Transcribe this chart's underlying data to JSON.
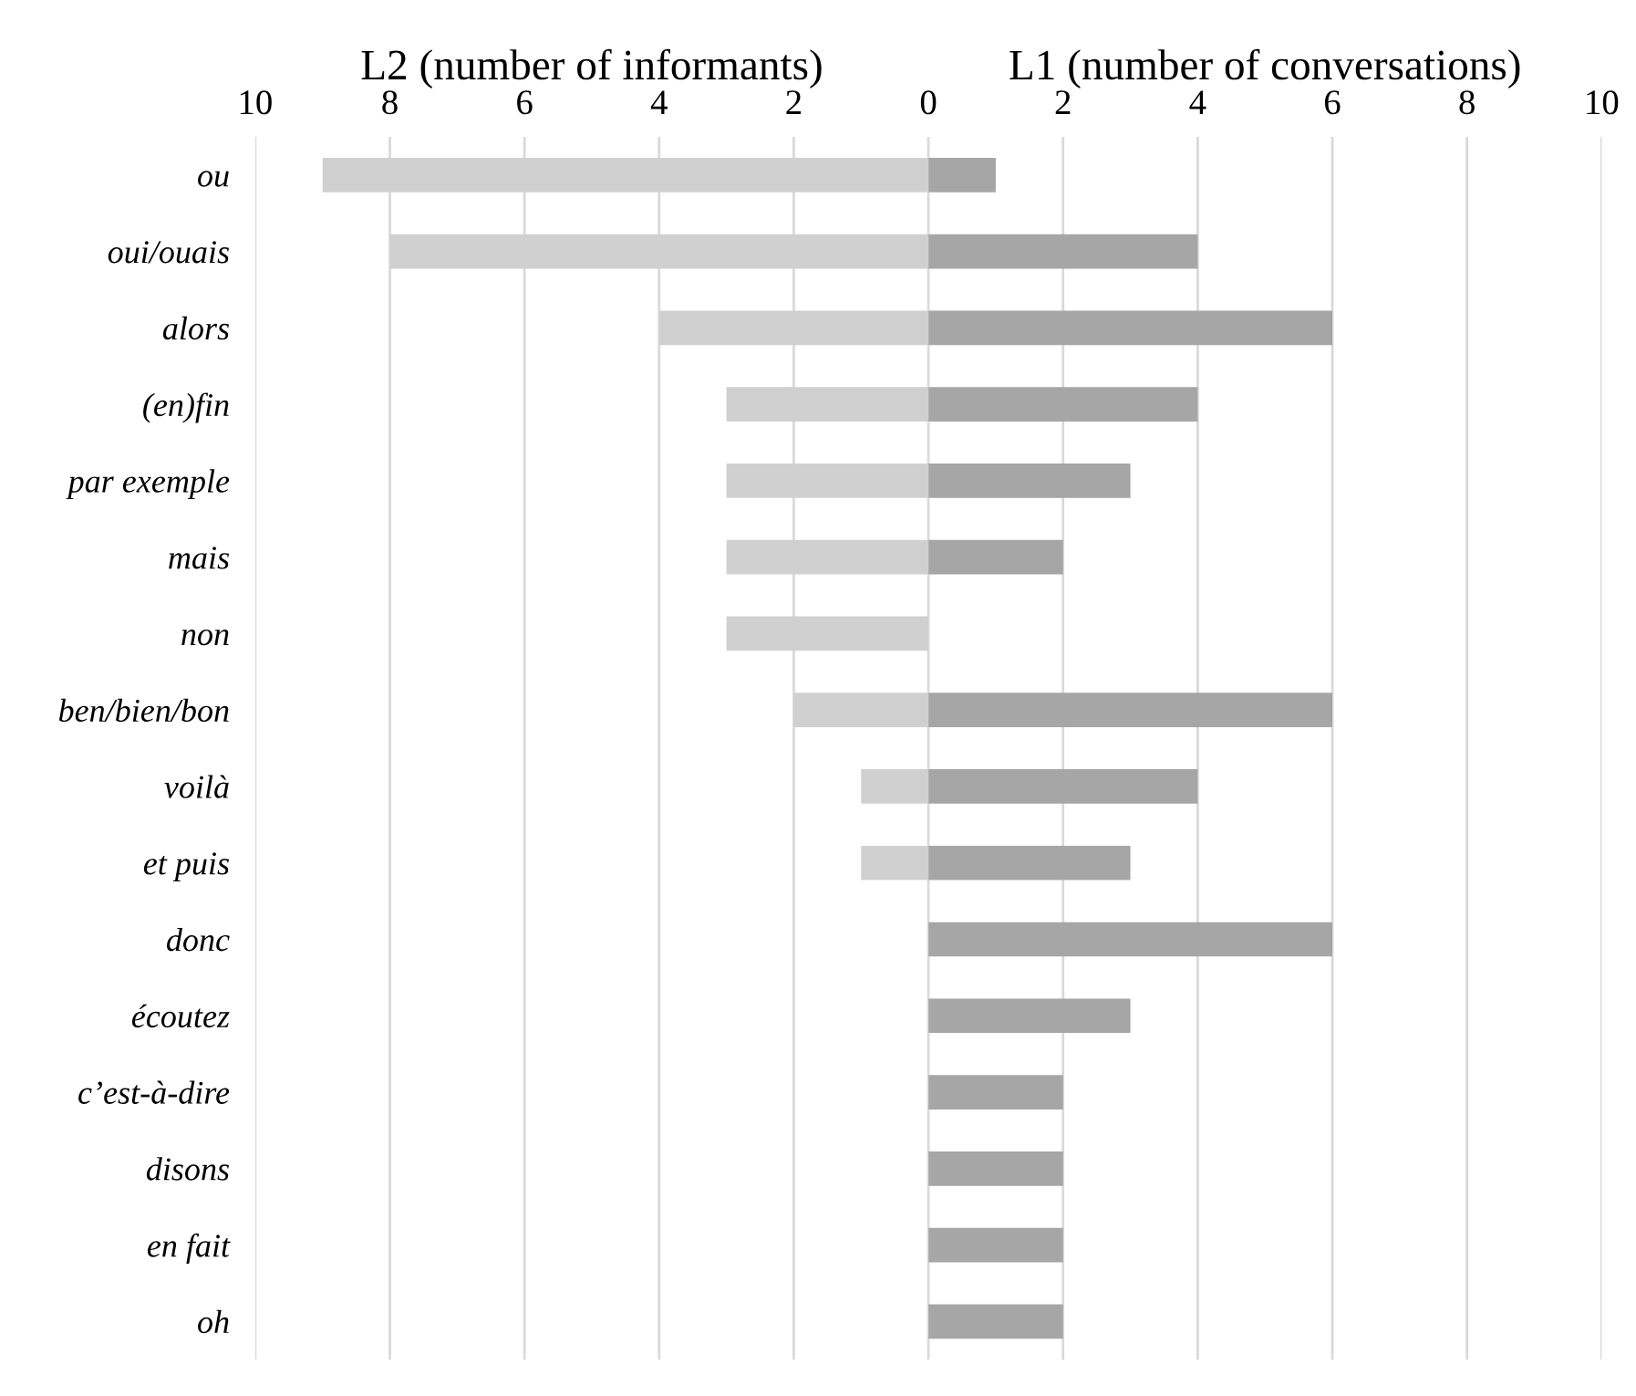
{
  "chart_data": [
    {
      "type": "bar",
      "orientation": "horizontal",
      "xlabel": "L2 (number of informants)",
      "categories": [
        "ou",
        "oui/ouais",
        "alors",
        "(en)fin",
        "par exemple",
        "mais",
        "non",
        "ben/bien/bon",
        "voilà",
        "et puis",
        "donc",
        "écoutez",
        "c’est-à-dire",
        "disons",
        "en fait",
        "oh"
      ],
      "values": [
        9,
        8,
        4,
        3,
        3,
        3,
        3,
        2,
        1,
        1,
        null,
        null,
        null,
        null,
        null,
        null
      ],
      "color": "#d0d0d0",
      "xlim": [
        10,
        0
      ],
      "xticks": [
        10,
        8,
        6,
        4,
        2,
        {
          "value": 0,
          "label": null
        }
      ],
      "grid": "x"
    },
    {
      "type": "bar",
      "orientation": "horizontal",
      "xlabel": "L1 (number of conversations)",
      "categories": [
        null,
        null,
        null,
        null,
        null,
        null,
        null,
        null,
        null,
        null,
        null,
        null,
        null,
        null,
        null,
        null
      ],
      "values": [
        1,
        4,
        6,
        4,
        3,
        2,
        0,
        6,
        4,
        3,
        6,
        3,
        2,
        2,
        2,
        2
      ],
      "color": "#a6a6a6",
      "xlim": [
        0,
        10
      ],
      "xticks": [
        0,
        2,
        4,
        6,
        8,
        10
      ],
      "grid": "x",
      "tick_labels": "x"
    }
  ]
}
